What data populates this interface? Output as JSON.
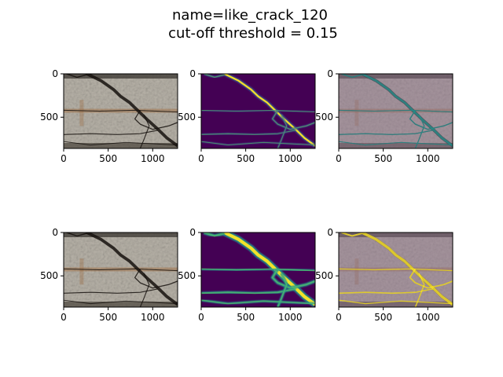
{
  "figure": {
    "title_line1": "name=like_crack_120",
    "title_line2": "cut-off threshold = 0.15"
  },
  "chart_data": [
    {
      "type": "heatmap",
      "image": "original",
      "xlim": [
        0,
        1280
      ],
      "ylim": [
        860,
        0
      ],
      "x_ticks": [
        0,
        500,
        1000
      ],
      "y_ticks": [
        0,
        500
      ]
    },
    {
      "type": "heatmap",
      "image": "prediction-probability",
      "colormap": "viridis",
      "xlim": [
        0,
        1280
      ],
      "ylim": [
        860,
        0
      ],
      "x_ticks": [
        0,
        500,
        1000
      ],
      "y_ticks": [
        0,
        500
      ]
    },
    {
      "type": "heatmap",
      "image": "overlay",
      "xlim": [
        0,
        1280
      ],
      "ylim": [
        860,
        0
      ],
      "x_ticks": [
        0,
        500,
        1000
      ],
      "y_ticks": [
        0,
        500
      ]
    },
    {
      "type": "heatmap",
      "image": "original",
      "xlim": [
        0,
        1280
      ],
      "ylim": [
        860,
        0
      ],
      "x_ticks": [
        0,
        500,
        1000
      ],
      "y_ticks": [
        0,
        500
      ]
    },
    {
      "type": "heatmap",
      "image": "thresholded-mask",
      "colormap": "viridis",
      "xlim": [
        0,
        1280
      ],
      "ylim": [
        860,
        0
      ],
      "x_ticks": [
        0,
        500,
        1000
      ],
      "y_ticks": [
        0,
        500
      ]
    },
    {
      "type": "heatmap",
      "image": "overlay",
      "xlim": [
        0,
        1280
      ],
      "ylim": [
        860,
        0
      ],
      "x_ticks": [
        0,
        500,
        1000
      ],
      "y_ticks": [
        0,
        500
      ]
    }
  ],
  "colors": {
    "viridis_low": "#440154",
    "viridis_mid": "#21918c",
    "viridis_high": "#fde725",
    "concrete": "#b7b2a8",
    "overlay_tint": "#8e6f8f"
  }
}
